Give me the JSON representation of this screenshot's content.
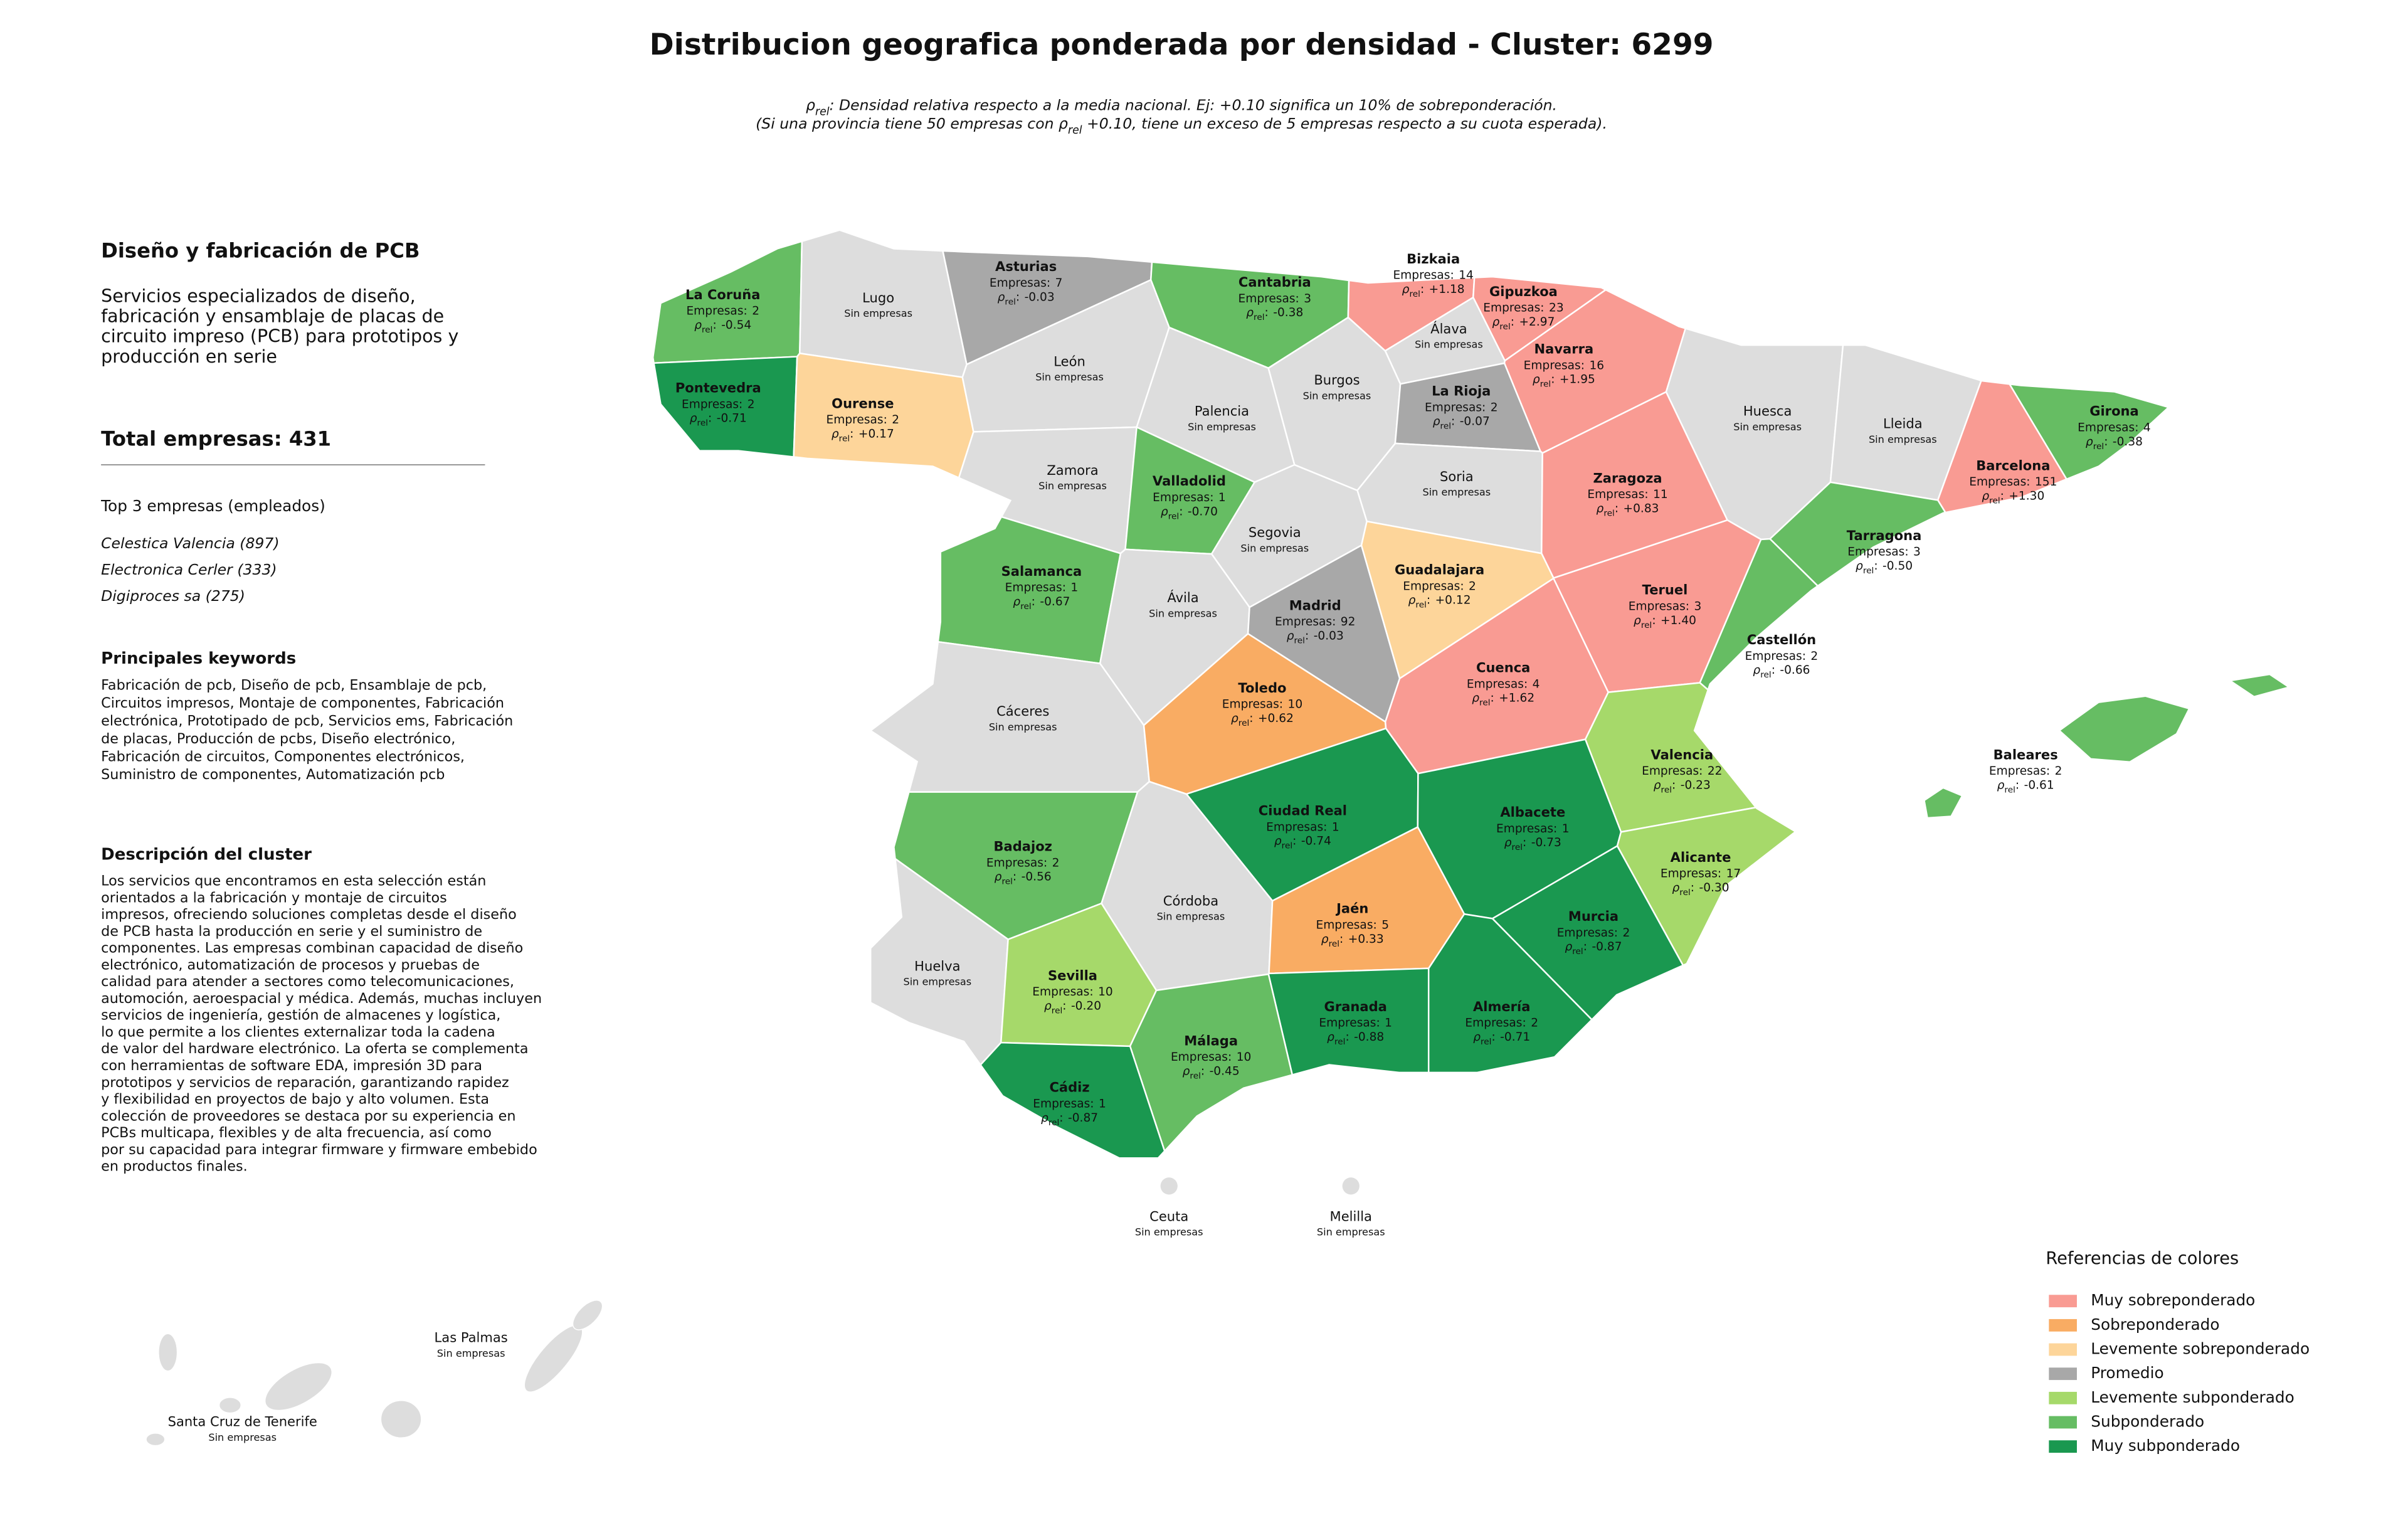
{
  "title": "Distribucion geografica ponderada por densidad - Cluster: 6299",
  "subtitle": [
    [
      {
        "text": "ρ"
      },
      {
        "text": "rel",
        "sub": true
      },
      {
        "text": ": Densidad relativa respecto a la media nacional. Ej: +0.10 significa un 10% de sobreponderación."
      }
    ],
    [
      {
        "text": "(Si una provincia tiene 50 empresas con "
      },
      {
        "text": "ρ"
      },
      {
        "text": "rel",
        "sub": true
      },
      {
        "text": " +0.10, tiene un exceso de 5 empresas respecto a su cuota esperada)."
      }
    ]
  ],
  "panel": {
    "title": "Diseño y fabricación de PCB",
    "description": [
      "Servicios especializados de diseño,",
      "fabricación y ensamblaje de placas de",
      "circuito impreso (PCB) para prototipos y",
      "producción en serie"
    ],
    "total": "Total empresas: 431",
    "top_title": "Top 3 empresas (empleados)",
    "top": [
      "Celestica Valencia (897)",
      "Electronica Cerler (333)",
      "Digiproces sa (275)"
    ],
    "keywords_title": "Principales keywords",
    "keywords": [
      "Fabricación de pcb, Diseño de pcb, Ensamblaje de pcb,",
      "Circuitos impresos, Montaje de componentes, Fabricación",
      "electrónica, Prototipado de pcb, Servicios ems, Fabricación",
      "de placas, Producción de pcbs, Diseño electrónico,",
      "Fabricación de circuitos, Componentes electrónicos,",
      "Suministro de componentes, Automatización pcb"
    ],
    "cluster_title": "Descripción del cluster",
    "cluster": [
      "Los servicios que encontramos en esta selección están",
      "orientados a la fabricación y montaje de circuitos",
      "impresos, ofreciendo soluciones completas desde el diseño",
      "de PCB hasta la producción en serie y el suministro de",
      "componentes. Las empresas combinan capacidad de diseño",
      "electrónico, automatización de procesos y pruebas de",
      "calidad para atender a sectores como telecomunicaciones,",
      "automoción, aeroespacial y médica. Además, muchas incluyen",
      "servicios de ingeniería, gestión de almacenes y logística,",
      "lo que permite a los clientes externalizar toda la cadena",
      "de valor del hardware electrónico. La oferta se complementa",
      "con herramientas de software EDA, impresión 3D para",
      "prototipos y servicios de reparación, garantizando rapidez",
      "y flexibilidad en proyectos de bajo y alto volumen. Esta",
      "colección de proveedores se destaca por su experiencia en",
      "PCBs multicapa, flexibles y de alta frecuencia, así como",
      "por su capacidad para integrar firmware y firmware embebido",
      "en productos finales."
    ]
  },
  "labels": {
    "empresas": "Empresas:",
    "rho": "ρ",
    "rho_sub": "rel",
    "colon": ":",
    "none": "Sin empresas"
  },
  "no_data_color": "#dddddd",
  "legend": {
    "title": "Referencias de colores",
    "items": [
      {
        "name": "Muy sobreponderado",
        "color": "#f99b93"
      },
      {
        "name": "Sobreponderado",
        "color": "#f9ac63"
      },
      {
        "name": "Levemente sobreponderado",
        "color": "#fdd59a"
      },
      {
        "name": "Promedio",
        "color": "#a8a8a8"
      },
      {
        "name": "Levemente subponderado",
        "color": "#a6d96a"
      },
      {
        "name": "Subponderado",
        "color": "#66bd63"
      },
      {
        "name": "Muy subponderado",
        "color": "#1a9850"
      }
    ]
  },
  "provinces": [
    {
      "name": "La Coruña",
      "category": 5,
      "empresas": 2,
      "rho": "-0.54"
    },
    {
      "name": "Lugo"
    },
    {
      "name": "Asturias",
      "category": 3,
      "empresas": 7,
      "rho": "-0.03"
    },
    {
      "name": "Cantabria",
      "category": 5,
      "empresas": 3,
      "rho": "-0.38"
    },
    {
      "name": "Bizkaia",
      "category": 0,
      "empresas": 14,
      "rho": "+1.18"
    },
    {
      "name": "Gipuzkoa",
      "category": 0,
      "empresas": 23,
      "rho": "+2.97"
    },
    {
      "name": "Álava"
    },
    {
      "name": "Navarra",
      "category": 0,
      "empresas": 16,
      "rho": "+1.95"
    },
    {
      "name": "Pontevedra",
      "category": 6,
      "empresas": 2,
      "rho": "-0.71"
    },
    {
      "name": "Ourense",
      "category": 2,
      "empresas": 2,
      "rho": "+0.17"
    },
    {
      "name": "León"
    },
    {
      "name": "Palencia"
    },
    {
      "name": "Burgos"
    },
    {
      "name": "La Rioja",
      "category": 3,
      "empresas": 2,
      "rho": "-0.07"
    },
    {
      "name": "Huesca"
    },
    {
      "name": "Lleida"
    },
    {
      "name": "Girona",
      "category": 5,
      "empresas": 4,
      "rho": "-0.38"
    },
    {
      "name": "Barcelona",
      "category": 0,
      "empresas": 151,
      "rho": "+1.30"
    },
    {
      "name": "Zamora"
    },
    {
      "name": "Valladolid",
      "category": 5,
      "empresas": 1,
      "rho": "-0.70"
    },
    {
      "name": "Soria"
    },
    {
      "name": "Zaragoza",
      "category": 0,
      "empresas": 11,
      "rho": "+0.83"
    },
    {
      "name": "Tarragona",
      "category": 5,
      "empresas": 3,
      "rho": "-0.50"
    },
    {
      "name": "Segovia"
    },
    {
      "name": "Salamanca",
      "category": 5,
      "empresas": 1,
      "rho": "-0.67"
    },
    {
      "name": "Ávila"
    },
    {
      "name": "Guadalajara",
      "category": 2,
      "empresas": 2,
      "rho": "+0.12"
    },
    {
      "name": "Madrid",
      "category": 3,
      "empresas": 92,
      "rho": "-0.03"
    },
    {
      "name": "Teruel",
      "category": 0,
      "empresas": 3,
      "rho": "+1.40"
    },
    {
      "name": "Castellón",
      "category": 5,
      "empresas": 2,
      "rho": "-0.66"
    },
    {
      "name": "Cáceres"
    },
    {
      "name": "Toledo",
      "category": 1,
      "empresas": 10,
      "rho": "+0.62"
    },
    {
      "name": "Cuenca",
      "category": 0,
      "empresas": 4,
      "rho": "+1.62"
    },
    {
      "name": "Valencia",
      "category": 4,
      "empresas": 22,
      "rho": "-0.23"
    },
    {
      "name": "Ciudad Real",
      "category": 6,
      "empresas": 1,
      "rho": "-0.74"
    },
    {
      "name": "Albacete",
      "category": 6,
      "empresas": 1,
      "rho": "-0.73"
    },
    {
      "name": "Badajoz",
      "category": 5,
      "empresas": 2,
      "rho": "-0.56"
    },
    {
      "name": "Alicante",
      "category": 4,
      "empresas": 17,
      "rho": "-0.30"
    },
    {
      "name": "Córdoba"
    },
    {
      "name": "Jaén",
      "category": 1,
      "empresas": 5,
      "rho": "+0.33"
    },
    {
      "name": "Murcia",
      "category": 6,
      "empresas": 2,
      "rho": "-0.87"
    },
    {
      "name": "Huelva"
    },
    {
      "name": "Sevilla",
      "category": 4,
      "empresas": 10,
      "rho": "-0.20"
    },
    {
      "name": "Granada",
      "category": 6,
      "empresas": 1,
      "rho": "-0.88"
    },
    {
      "name": "Almería",
      "category": 6,
      "empresas": 2,
      "rho": "-0.71"
    },
    {
      "name": "Málaga",
      "category": 5,
      "empresas": 10,
      "rho": "-0.45"
    },
    {
      "name": "Cádiz",
      "category": 6,
      "empresas": 1,
      "rho": "-0.87"
    },
    {
      "name": "Baleares",
      "category": 5,
      "empresas": 2,
      "rho": "-0.61"
    },
    {
      "name": "Ceuta"
    },
    {
      "name": "Melilla"
    },
    {
      "name": "Las Palmas"
    },
    {
      "name": "Santa Cruz de Tenerife"
    }
  ]
}
